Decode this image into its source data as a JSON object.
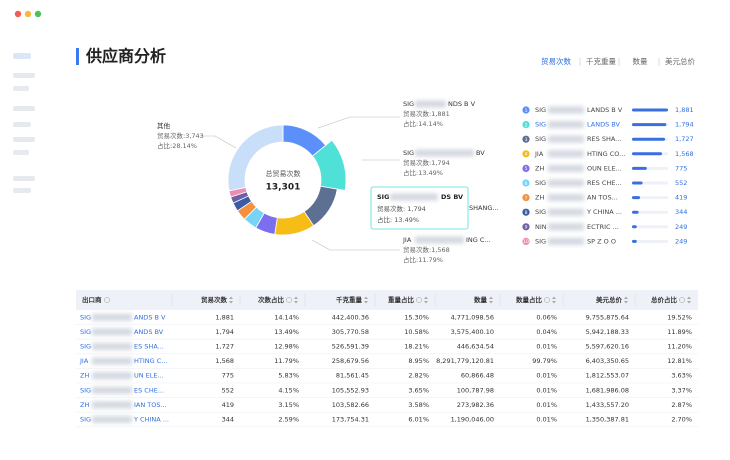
{
  "header": {
    "title": "供应商分析",
    "tabs": [
      "贸易次数",
      "千克重量",
      "数量",
      "美元总价"
    ],
    "active_tab": 0
  },
  "donut": {
    "center_label": "总贸易次数",
    "center_value": "13,301",
    "segments": [
      {
        "value": 1881,
        "color": "#5b8ff9"
      },
      {
        "value": 1794,
        "color": "#4fe0d8"
      },
      {
        "value": 1727,
        "color": "#5d7092"
      },
      {
        "value": 1568,
        "color": "#f6bd16"
      },
      {
        "value": 775,
        "color": "#7b6ff0"
      },
      {
        "value": 552,
        "color": "#78d3f8"
      },
      {
        "value": 419,
        "color": "#f6903d"
      },
      {
        "value": 344,
        "color": "#3a5ca8"
      },
      {
        "value": 249,
        "color": "#6f5ea8"
      },
      {
        "value": 249,
        "color": "#f08bb4"
      },
      {
        "value": 3743,
        "color": "#c9def8"
      }
    ],
    "callouts": [
      {
        "start": "SIG",
        "end": "NDS B V",
        "lines": [
          "贸易次数:1,881",
          "占比:14.14%"
        ]
      },
      {
        "start": "SIG",
        "end": "BV",
        "lines": [
          "贸易次数:1,794",
          "占比:13.49%"
        ]
      },
      {
        "end": "SHANG..."
      },
      {
        "start": "JIA",
        "end": "ING C...",
        "lines": [
          "贸易次数:1,568",
          "占比:11.79%"
        ]
      },
      {
        "start": "其他",
        "lines": [
          "贸易次数:3,743",
          "占比:28.14%"
        ]
      }
    ],
    "tooltip": {
      "start": "SIG",
      "end": "DS BV",
      "lines": [
        "贸易次数: 1,794",
        "占比: 13.49%"
      ]
    }
  },
  "ranking": [
    {
      "rank": 1,
      "start": "SIG",
      "end": "LANDS B V",
      "value": 1881,
      "label": "1,881"
    },
    {
      "rank": 2,
      "start": "SIG",
      "end": "LANDS BV",
      "value": 1794,
      "label": "1,794"
    },
    {
      "rank": 3,
      "start": "SIG",
      "end": "RES SHA...",
      "value": 1727,
      "label": "1,727"
    },
    {
      "rank": 4,
      "start": "JIA",
      "end": "HTING CO...",
      "value": 1568,
      "label": "1,568"
    },
    {
      "rank": 5,
      "start": "ZH",
      "end": "OUN ELE...",
      "value": 775,
      "label": "775"
    },
    {
      "rank": 6,
      "start": "SIG",
      "end": "RES CHE...",
      "value": 552,
      "label": "552"
    },
    {
      "rank": 7,
      "start": "ZH",
      "end": "AN TOS...",
      "value": 419,
      "label": "419"
    },
    {
      "rank": 8,
      "start": "SIG",
      "end": "Y CHINA ...",
      "value": 344,
      "label": "344"
    },
    {
      "rank": 9,
      "start": "NIN",
      "end": "ECTRIC ...",
      "value": 249,
      "label": "249"
    },
    {
      "rank": 10,
      "start": "SIG",
      "end": "SP Z O O",
      "value": 249,
      "label": "249"
    }
  ],
  "table": {
    "columns": [
      "出口商",
      "贸易次数",
      "次数占比",
      "千克重量",
      "重量占比",
      "数量",
      "数量占比",
      "美元总价",
      "总价占比"
    ],
    "rows": [
      {
        "start": "SIG",
        "end": "ANDS B V",
        "cells": [
          "1,881",
          "14.14%",
          "442,400.36",
          "15.30%",
          "4,771,098.56",
          "0.06%",
          "9,755,875.64",
          "19.52%"
        ]
      },
      {
        "start": "SIG",
        "end": "ANDS BV",
        "cells": [
          "1,794",
          "13.49%",
          "305,770.58",
          "10.58%",
          "3,575,400.10",
          "0.04%",
          "5,942,188.33",
          "11.89%"
        ]
      },
      {
        "start": "SIG",
        "end": "ES SHA...",
        "cells": [
          "1,727",
          "12.98%",
          "526,591.39",
          "18.21%",
          "446,634.54",
          "0.01%",
          "5,597,620.16",
          "11.20%"
        ]
      },
      {
        "start": "JIA",
        "end": "HTING C...",
        "cells": [
          "1,568",
          "11.79%",
          "258,679.56",
          "8.95%",
          "8,291,779,120.81",
          "99.79%",
          "6,403,350.65",
          "12.81%"
        ]
      },
      {
        "start": "ZH",
        "end": "UN ELE...",
        "cells": [
          "775",
          "5.83%",
          "81,561.45",
          "2.82%",
          "60,866.48",
          "0.01%",
          "1,812,553.07",
          "3.63%"
        ]
      },
      {
        "start": "SIG",
        "end": "ES CHE...",
        "cells": [
          "552",
          "4.15%",
          "105,552.93",
          "3.65%",
          "100,787.98",
          "0.01%",
          "1,681,986.08",
          "3.37%"
        ]
      },
      {
        "start": "ZH",
        "end": "IAN TOS...",
        "cells": [
          "419",
          "3.15%",
          "103,582.66",
          "3.58%",
          "273,982.36",
          "0.01%",
          "1,433,557.20",
          "2.87%"
        ]
      },
      {
        "start": "SIG",
        "end": "Y CHINA ...",
        "cells": [
          "344",
          "2.59%",
          "173,754.31",
          "6.01%",
          "1,190,046.00",
          "0.01%",
          "1,350,387.81",
          "2.70%"
        ]
      }
    ]
  }
}
